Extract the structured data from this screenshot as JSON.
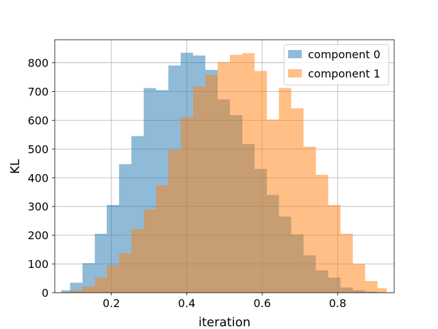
{
  "chart_data": {
    "type": "bar",
    "xlabel": "iteration",
    "ylabel": "KL",
    "xlim": [
      0.05,
      0.95
    ],
    "ylim": [
      0,
      880
    ],
    "xticks": [
      0.2,
      0.4,
      0.6,
      0.8
    ],
    "xtick_labels": [
      "0.2",
      "0.4",
      "0.6",
      "0.8"
    ],
    "yticks": [
      0,
      100,
      200,
      300,
      400,
      500,
      600,
      700,
      800
    ],
    "ytick_labels": [
      "0",
      "100",
      "200",
      "300",
      "400",
      "500",
      "600",
      "700",
      "800"
    ],
    "grid": true,
    "legend_position": "top-right",
    "series": [
      {
        "name": "component 0",
        "color": "#1f77b4",
        "opacity": 0.5,
        "bin_edges": [
          0.067,
          0.0905,
          0.1231,
          0.1557,
          0.1883,
          0.2209,
          0.2535,
          0.2861,
          0.3187,
          0.3513,
          0.3839,
          0.4165,
          0.4491,
          0.4817,
          0.5143,
          0.5469,
          0.5795,
          0.6121,
          0.6447,
          0.6773,
          0.7099,
          0.7425,
          0.7751,
          0.8077,
          0.8403,
          0.8729,
          0.9055
        ],
        "counts": [
          8,
          35,
          102,
          205,
          305,
          447,
          545,
          712,
          705,
          790,
          835,
          825,
          775,
          673,
          618,
          518,
          430,
          340,
          265,
          203,
          130,
          78,
          53,
          18,
          8,
          4
        ]
      },
      {
        "name": "component 1",
        "color": "#ff7f0e",
        "opacity": 0.5,
        "bin_edges": [
          0.0905,
          0.1231,
          0.1557,
          0.1883,
          0.2209,
          0.2535,
          0.2861,
          0.3187,
          0.3513,
          0.3839,
          0.4165,
          0.4491,
          0.4817,
          0.5143,
          0.5469,
          0.5795,
          0.6121,
          0.6447,
          0.6773,
          0.7099,
          0.7425,
          0.7751,
          0.8077,
          0.8403,
          0.8729,
          0.9055,
          0.93
        ],
        "counts": [
          8,
          22,
          53,
          95,
          137,
          222,
          290,
          375,
          497,
          612,
          718,
          758,
          803,
          828,
          833,
          772,
          602,
          712,
          642,
          508,
          410,
          305,
          205,
          100,
          40,
          15
        ]
      }
    ]
  }
}
